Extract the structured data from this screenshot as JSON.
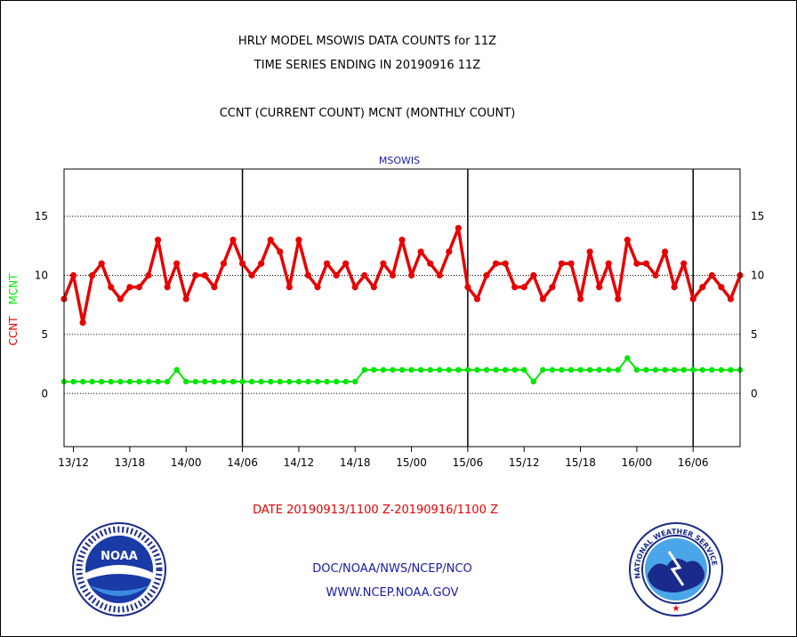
{
  "header": {
    "line1": "HRLY MODEL MSOWIS DATA COUNTS for 11Z",
    "line2": "TIME SERIES ENDING IN 20190916 11Z",
    "line3": "CCNT (CURRENT COUNT) MCNT (MONTHLY COUNT)"
  },
  "footer": {
    "date_range": "DATE 20190913/1100 Z-20190916/1100 Z",
    "org": "DOC/NOAA/NWS/NCEP/NCO",
    "url": "WWW.NCEP.NOAA.GOV"
  },
  "logos": {
    "left_text": "NOAA",
    "right_ring": "NATIONAL WEATHER SERVICE"
  },
  "chart_data": {
    "type": "line",
    "title": "MSOWIS",
    "ylabel_parts": [
      "CCNT",
      "MCNT"
    ],
    "ylim": [
      -4.5,
      19
    ],
    "yticks": [
      0,
      5,
      10,
      15
    ],
    "grid": "horizontal dotted",
    "xticks": [
      "13/12",
      "13/18",
      "14/00",
      "14/06",
      "14/12",
      "14/18",
      "15/00",
      "15/06",
      "15/12",
      "15/18",
      "16/00",
      "16/06"
    ],
    "x_start": "13/11",
    "day_markers": [
      "14/06",
      "15/06",
      "16/06"
    ],
    "series": [
      {
        "name": "CCNT",
        "color": "#e60000",
        "values": [
          8,
          10,
          6,
          10,
          11,
          9,
          8,
          9,
          9,
          10,
          13,
          9,
          11,
          8,
          10,
          10,
          9,
          11,
          13,
          11,
          10,
          11,
          13,
          12,
          9,
          13,
          10,
          9,
          11,
          10,
          11,
          9,
          10,
          9,
          11,
          10,
          13,
          10,
          12,
          11,
          10,
          12,
          14,
          9,
          8,
          10,
          11,
          11,
          9,
          9,
          10,
          8,
          9,
          11,
          11,
          8,
          12,
          9,
          11,
          8,
          13,
          11,
          11,
          10,
          12,
          9,
          11,
          8,
          9,
          10,
          9,
          8,
          10
        ]
      },
      {
        "name": "MCNT",
        "color": "#00e600",
        "values": [
          1,
          1,
          1,
          1,
          1,
          1,
          1,
          1,
          1,
          1,
          1,
          1,
          2,
          1,
          1,
          1,
          1,
          1,
          1,
          1,
          1,
          1,
          1,
          1,
          1,
          1,
          1,
          1,
          1,
          1,
          1,
          1,
          2,
          2,
          2,
          2,
          2,
          2,
          2,
          2,
          2,
          2,
          2,
          2,
          2,
          2,
          2,
          2,
          2,
          2,
          1,
          2,
          2,
          2,
          2,
          2,
          2,
          2,
          2,
          2,
          3,
          2,
          2,
          2,
          2,
          2,
          2,
          2,
          2,
          2,
          2,
          2,
          2
        ]
      }
    ]
  }
}
